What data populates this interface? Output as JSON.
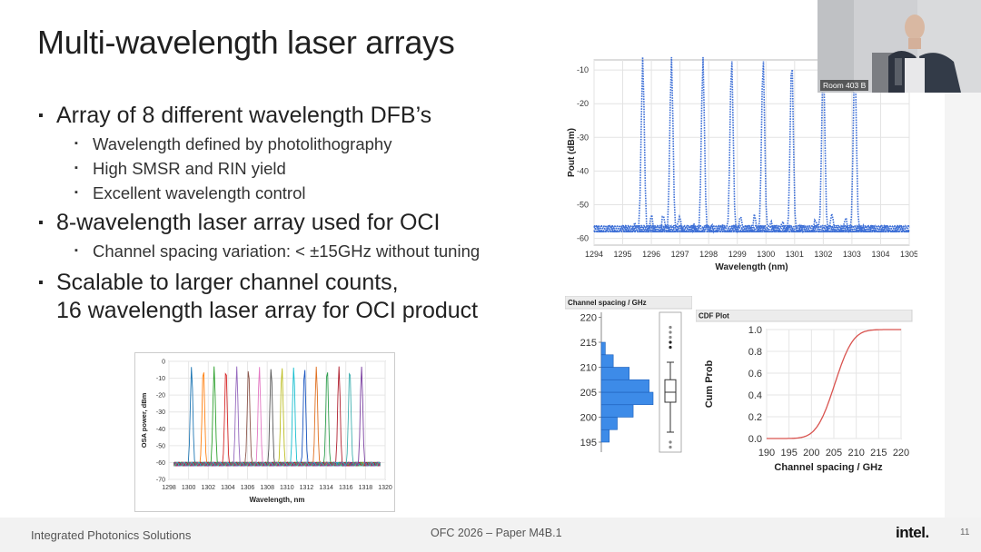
{
  "slide": {
    "title": "Multi-wavelength laser arrays",
    "bullets": [
      {
        "text": "Array of 8 different wavelength DFB’s",
        "subs": [
          "Wavelength defined by photolithography",
          "High SMSR and RIN yield",
          "Excellent wavelength control"
        ]
      },
      {
        "text": "8-wavelength laser array used for OCI",
        "subs": [
          "Channel spacing variation: < ±15GHz without tuning"
        ]
      },
      {
        "text_lines": [
          "Scalable to larger channel counts,",
          "16 wavelength laser array for OCI product"
        ]
      }
    ]
  },
  "footer": {
    "left": "Integrated Photonics Solutions",
    "center": "OFC 2026 – Paper M4B.1",
    "logo": "intel.",
    "page": "11"
  },
  "video": {
    "room_label": "Room 403 B"
  },
  "colors": {
    "series_blue": "#3d6fd6",
    "cdf_red": "#d9534f",
    "hist_blue": "#3d8be8"
  },
  "chart_data": [
    {
      "type": "line",
      "name": "osa-spectrum-8ch",
      "xlabel": "Wavelength (nm)",
      "ylabel": "Pout (dBm)",
      "xlim": [
        1294,
        1305
      ],
      "ylim": [
        -62,
        -7
      ],
      "xticks": [
        "1294",
        "1295",
        "1296",
        "1297",
        "1298",
        "1299",
        "1300",
        "1301",
        "1302",
        "1303",
        "1304",
        "1305"
      ],
      "yticks": [
        "-10",
        "-20",
        "-30",
        "-40",
        "-50",
        "-60"
      ],
      "peaks": [
        1295.7,
        1296.7,
        1297.8,
        1298.8,
        1299.9,
        1300.9,
        1302.0,
        1303.1
      ],
      "peak_level": -6,
      "floor_level": -58,
      "grid": true
    },
    {
      "type": "line",
      "name": "osa-spectrum-16ch",
      "xlabel": "Wavelength, nm",
      "ylabel": "OSA power, dBm",
      "xlim": [
        1298,
        1320
      ],
      "ylim": [
        -70,
        0
      ],
      "xticks": [
        "1298",
        "1300",
        "1302",
        "1304",
        "1306",
        "1308",
        "1310",
        "1312",
        "1314",
        "1316",
        "1318",
        "1320"
      ],
      "yticks": [
        "0",
        "-10",
        "-20",
        "-30",
        "-40",
        "-50",
        "-60",
        "-70"
      ],
      "peaks": [
        1300.3,
        1301.5,
        1302.6,
        1303.8,
        1304.9,
        1306.1,
        1307.2,
        1308.4,
        1309.5,
        1310.7,
        1311.8,
        1313.0,
        1314.1,
        1315.3,
        1316.4,
        1317.6
      ],
      "peak_level": -3,
      "floor_level": -62,
      "grid": true
    },
    {
      "type": "bar",
      "name": "channel-spacing-histogram",
      "title": "Channel spacing / GHz",
      "yticks": [
        "220",
        "215",
        "210",
        "205",
        "200",
        "195"
      ],
      "ylim": [
        193,
        221
      ],
      "bins": [
        {
          "from": 195,
          "to": 197.5,
          "count": 2
        },
        {
          "from": 197.5,
          "to": 200,
          "count": 4
        },
        {
          "from": 200,
          "to": 202.5,
          "count": 8
        },
        {
          "from": 202.5,
          "to": 205,
          "count": 13
        },
        {
          "from": 205,
          "to": 207.5,
          "count": 12
        },
        {
          "from": 207.5,
          "to": 210,
          "count": 7
        },
        {
          "from": 210,
          "to": 212.5,
          "count": 3
        },
        {
          "from": 212.5,
          "to": 215,
          "count": 1
        }
      ],
      "boxplot": {
        "whisker_low": 197,
        "q1": 203,
        "median": 205,
        "q3": 207.5,
        "whisker_high": 211,
        "outliers_high": [
          214,
          215,
          216,
          217,
          218
        ],
        "outliers_low": [
          195,
          194
        ]
      }
    },
    {
      "type": "line",
      "name": "cdf-plot",
      "title": "CDF Plot",
      "xlabel": "Channel spacing / GHz",
      "ylabel": "Cum Prob",
      "xlim": [
        190,
        220
      ],
      "ylim": [
        0,
        1
      ],
      "xticks": [
        "190",
        "195",
        "200",
        "205",
        "210",
        "215",
        "220"
      ],
      "yticks": [
        "1.0",
        "0.8",
        "0.6",
        "0.4",
        "0.2",
        "0.0"
      ],
      "mean": 205.2,
      "sd": 3.2,
      "grid": true
    }
  ]
}
